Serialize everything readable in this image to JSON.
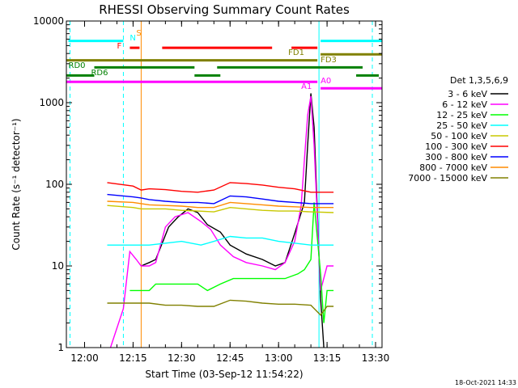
{
  "chart_data": {
    "type": "line",
    "title": "RHESSI Observing Summary Count Rates",
    "xlabel": "Start Time (03-Sep-12 11:54:22)",
    "ylabel": "Count Rate (s⁻¹ detector⁻¹)",
    "y_scale": "log",
    "ylim": [
      1,
      10000
    ],
    "xlim": [
      "11:54:22",
      "13:32"
    ],
    "x_ticks": [
      "12:00",
      "12:15",
      "12:30",
      "12:45",
      "13:00",
      "13:15",
      "13:30"
    ],
    "y_ticks": [
      "1",
      "10",
      "100",
      "1000",
      "10000"
    ],
    "legend_title": "Det 1,3,5,6,9",
    "legend_position": "right",
    "footer_date": "18-Oct-2021 14:33",
    "series": [
      {
        "name": "3 - 6 keV",
        "color": "#000000",
        "x": [
          "12:17:30",
          "12:20",
          "12:22",
          "12:26",
          "12:29",
          "12:32",
          "12:35",
          "12:38",
          "12:42",
          "12:45",
          "12:50",
          "12:55",
          "12:59",
          "13:02",
          "13:05",
          "13:08",
          "13:09",
          "13:10",
          "13:11",
          "13:13",
          "13:14"
        ],
        "y": [
          10,
          11,
          12,
          30,
          40,
          50,
          45,
          32,
          26,
          18,
          14,
          12,
          10,
          11,
          25,
          60,
          300,
          1300,
          500,
          4,
          1
        ]
      },
      {
        "name": "6 - 12 keV",
        "color": "#ff00ff",
        "x": [
          "12:08",
          "12:12",
          "12:14",
          "12:16",
          "12:17:30",
          "12:20",
          "12:22",
          "12:25",
          "12:28",
          "12:32",
          "12:36",
          "12:39",
          "12:42",
          "12:46",
          "12:50",
          "12:55",
          "12:59",
          "13:02",
          "13:05",
          "13:07",
          "13:08",
          "13:09",
          "13:10",
          "13:11",
          "13:13",
          "13:15",
          "13:17"
        ],
        "y": [
          1,
          3,
          15,
          12,
          10,
          10,
          11,
          30,
          40,
          45,
          35,
          28,
          18,
          13,
          11,
          10,
          9,
          11,
          20,
          55,
          200,
          700,
          1200,
          300,
          5,
          10,
          10
        ]
      },
      {
        "name": "12 - 25 keV",
        "color": "#00ff00",
        "x": [
          "12:14",
          "12:15",
          "12:18",
          "12:20",
          "12:22",
          "12:25",
          "12:30",
          "12:35",
          "12:38",
          "12:42",
          "12:46",
          "12:52",
          "12:57",
          "13:02",
          "13:06",
          "13:08",
          "13:10",
          "13:11",
          "13:13",
          "13:14",
          "13:15",
          "13:17"
        ],
        "y": [
          5,
          5,
          5,
          5,
          6,
          6,
          6,
          6,
          5,
          6,
          7,
          7,
          7,
          7,
          8,
          9,
          12,
          60,
          8,
          2,
          5,
          5
        ]
      },
      {
        "name": "25 - 50 keV",
        "color": "#00ffff",
        "x": [
          "12:07",
          "12:15",
          "12:17:30",
          "12:20",
          "12:30",
          "12:36",
          "12:40",
          "12:45",
          "12:50",
          "12:55",
          "13:00",
          "13:05",
          "13:10",
          "13:17"
        ],
        "y": [
          18,
          18,
          18,
          18,
          20,
          18,
          20,
          23,
          22,
          22,
          20,
          19,
          18,
          18
        ]
      },
      {
        "name": "50 - 100 keV",
        "color": "#c8c800",
        "x": [
          "12:07",
          "12:15",
          "12:17:30",
          "12:20",
          "12:25",
          "12:30",
          "12:35",
          "12:40",
          "12:45",
          "12:50",
          "12:55",
          "13:00",
          "13:05",
          "13:10",
          "13:17"
        ],
        "y": [
          55,
          52,
          50,
          50,
          50,
          48,
          47,
          46,
          52,
          50,
          48,
          47,
          47,
          46,
          45
        ]
      },
      {
        "name": "100 - 300 keV",
        "color": "#ff0000",
        "x": [
          "12:07",
          "12:15",
          "12:17:30",
          "12:20",
          "12:25",
          "12:30",
          "12:35",
          "12:40",
          "12:45",
          "12:50",
          "12:55",
          "13:00",
          "13:05",
          "13:10",
          "13:17"
        ],
        "y": [
          105,
          95,
          85,
          88,
          86,
          82,
          80,
          85,
          105,
          102,
          98,
          92,
          88,
          80,
          80
        ]
      },
      {
        "name": "300 - 800 keV",
        "color": "#0000ff",
        "x": [
          "12:07",
          "12:15",
          "12:17:30",
          "12:20",
          "12:25",
          "12:30",
          "12:35",
          "12:40",
          "12:45",
          "12:50",
          "12:55",
          "13:00",
          "13:05",
          "13:10",
          "13:17"
        ],
        "y": [
          75,
          70,
          68,
          65,
          62,
          60,
          60,
          58,
          72,
          70,
          66,
          62,
          60,
          58,
          58
        ]
      },
      {
        "name": "800 - 7000 keV",
        "color": "#ff8c00",
        "x": [
          "12:07",
          "12:15",
          "12:17:30",
          "12:20",
          "12:25",
          "12:30",
          "12:35",
          "12:40",
          "12:45",
          "12:50",
          "12:55",
          "13:00",
          "13:05",
          "13:10",
          "13:17"
        ],
        "y": [
          62,
          60,
          58,
          56,
          55,
          54,
          52,
          52,
          60,
          58,
          56,
          54,
          53,
          52,
          52
        ]
      },
      {
        "name": "7000 - 15000 keV",
        "color": "#808000",
        "x": [
          "12:07",
          "12:15",
          "12:17:30",
          "12:20",
          "12:25",
          "12:30",
          "12:35",
          "12:40",
          "12:45",
          "12:50",
          "12:55",
          "13:00",
          "13:05",
          "13:10",
          "13:13",
          "13:15",
          "13:17"
        ],
        "y": [
          3.5,
          3.5,
          3.5,
          3.5,
          3.3,
          3.3,
          3.2,
          3.2,
          3.8,
          3.7,
          3.5,
          3.4,
          3.4,
          3.3,
          2.5,
          3.2,
          3.2
        ]
      }
    ],
    "vertical_markers": [
      {
        "time": "11:55:30",
        "color": "#00ffff",
        "style": "dashed"
      },
      {
        "time": "12:12:00",
        "color": "#00ffff",
        "style": "dashed"
      },
      {
        "time": "12:17:30",
        "color": "#ff8c00",
        "style": "solid"
      },
      {
        "time": "13:12:30",
        "color": "#00ffff",
        "style": "solid"
      },
      {
        "time": "13:29:00",
        "color": "#00ffff",
        "style": "dashed"
      }
    ],
    "flag_bars": [
      {
        "label": "N",
        "color": "#00ffff",
        "level": 5700,
        "segments": [
          [
            "11:55",
            "12:12"
          ],
          [
            "13:13",
            "13:32"
          ]
        ]
      },
      {
        "label": "S",
        "color": "#ff8c00",
        "level": 7500,
        "segments": []
      },
      {
        "label": "F",
        "color": "#ff0000",
        "level": 4700,
        "segments": [
          [
            "12:14",
            "12:17"
          ],
          [
            "12:24",
            "12:58"
          ],
          [
            "13:04",
            "13:12"
          ]
        ]
      },
      {
        "label": "FD1",
        "color": "#808000",
        "level": 3900,
        "segments": [
          [
            "13:13",
            "13:32"
          ]
        ]
      },
      {
        "label": "FD3",
        "color": "#808000",
        "level": 3300,
        "segments": [
          [
            "11:54:22",
            "13:12"
          ]
        ]
      },
      {
        "label": "RD0",
        "color": "#008000",
        "level": 2700,
        "segments": [
          [
            "12:03",
            "12:34"
          ],
          [
            "12:41",
            "13:26"
          ]
        ]
      },
      {
        "label": "RD6",
        "color": "#008000",
        "level": 2150,
        "segments": [
          [
            "11:54:22",
            "12:03"
          ],
          [
            "12:34",
            "12:42"
          ],
          [
            "13:24",
            "13:31"
          ]
        ]
      },
      {
        "label": "A1",
        "color": "#ff00ff",
        "level": 1800,
        "segments": [
          [
            "11:54:22",
            "13:12"
          ]
        ]
      },
      {
        "label": "A0",
        "color": "#ff00ff",
        "level": 1500,
        "segments": [
          [
            "13:13",
            "13:32"
          ]
        ]
      }
    ]
  }
}
